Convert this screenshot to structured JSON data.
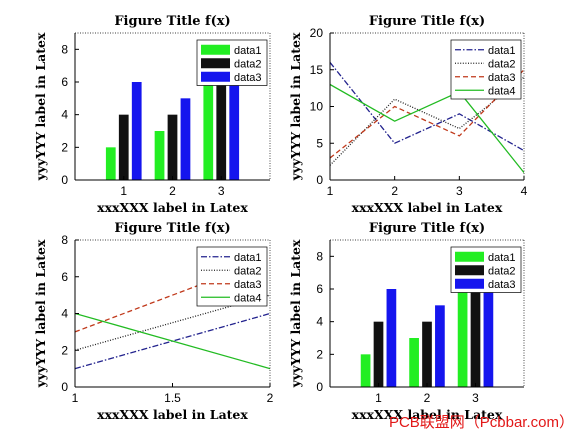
{
  "watermark": "PCB联盟网（Pcbbar.com）",
  "chart_data": [
    {
      "type": "bar",
      "title": "Figure Title f(x)",
      "xlabel": "xxxXXX label in Latex",
      "ylabel": "yyyYYY label in Latex",
      "categories": [
        "1",
        "2",
        "3"
      ],
      "xlim": [
        0,
        4
      ],
      "ylim": [
        0,
        9
      ],
      "yticks": [
        0,
        2,
        4,
        6,
        8
      ],
      "legend": "top-right",
      "series": [
        {
          "name": "data1",
          "color": "#22ee22",
          "values": [
            2,
            3,
            8
          ]
        },
        {
          "name": "data2",
          "color": "#111111",
          "values": [
            4,
            4,
            8
          ]
        },
        {
          "name": "data3",
          "color": "#1515ee",
          "values": [
            6,
            5,
            8
          ]
        }
      ]
    },
    {
      "type": "line",
      "title": "Figure Title f(x)",
      "xlabel": "xxxXXX label in Latex",
      "ylabel": "yyyYYY label in Latex",
      "x": [
        1,
        2,
        3,
        4
      ],
      "xlim": [
        1,
        4
      ],
      "ylim": [
        0,
        20
      ],
      "xticks": [
        1,
        2,
        3,
        4
      ],
      "yticks": [
        0,
        5,
        10,
        15,
        20
      ],
      "legend": "top-right",
      "series": [
        {
          "name": "data1",
          "color": "#23238e",
          "dash": "6,2,1.5,2",
          "values": [
            16,
            5,
            9,
            4
          ]
        },
        {
          "name": "data2",
          "color": "#222222",
          "dash": "1,1.6",
          "values": [
            2,
            11,
            7,
            14
          ]
        },
        {
          "name": "data3",
          "color": "#c0391b",
          "dash": "5,3",
          "values": [
            3,
            10,
            6,
            15
          ]
        },
        {
          "name": "data4",
          "color": "#22bb22",
          "dash": "",
          "values": [
            13,
            8,
            12,
            1
          ]
        }
      ]
    },
    {
      "type": "line",
      "title": "Figure Title f(x)",
      "xlabel": "xxxXXX label in Latex",
      "ylabel": "yyyYYY label in Latex",
      "x": [
        1,
        2
      ],
      "xlim": [
        1,
        2
      ],
      "ylim": [
        0,
        8
      ],
      "xticks": [
        1,
        1.5,
        2
      ],
      "yticks": [
        0,
        2,
        4,
        6,
        8
      ],
      "legend": "top-right",
      "series": [
        {
          "name": "data1",
          "color": "#23238e",
          "dash": "6,2,1.5,2",
          "values": [
            1,
            4
          ]
        },
        {
          "name": "data2",
          "color": "#222222",
          "dash": "1,1.6",
          "values": [
            2,
            5
          ]
        },
        {
          "name": "data3",
          "color": "#c0391b",
          "dash": "5,3",
          "values": [
            3,
            7
          ]
        },
        {
          "name": "data4",
          "color": "#22bb22",
          "dash": "",
          "values": [
            4,
            1
          ]
        }
      ]
    },
    {
      "type": "bar",
      "title": "Figure Title f(x)",
      "xlabel": "xxxXXX label in Latex",
      "ylabel": "yyyYYY label in Latex",
      "categories": [
        "1",
        "2",
        "3"
      ],
      "xlim": [
        0,
        4
      ],
      "ylim": [
        0,
        9
      ],
      "yticks": [
        0,
        2,
        4,
        6,
        8
      ],
      "legend": "top-right",
      "series": [
        {
          "name": "data1",
          "color": "#22ee22",
          "values": [
            2,
            3,
            8
          ]
        },
        {
          "name": "data2",
          "color": "#111111",
          "values": [
            4,
            4,
            8
          ]
        },
        {
          "name": "data3",
          "color": "#1515ee",
          "values": [
            6,
            5,
            8
          ]
        }
      ]
    }
  ]
}
